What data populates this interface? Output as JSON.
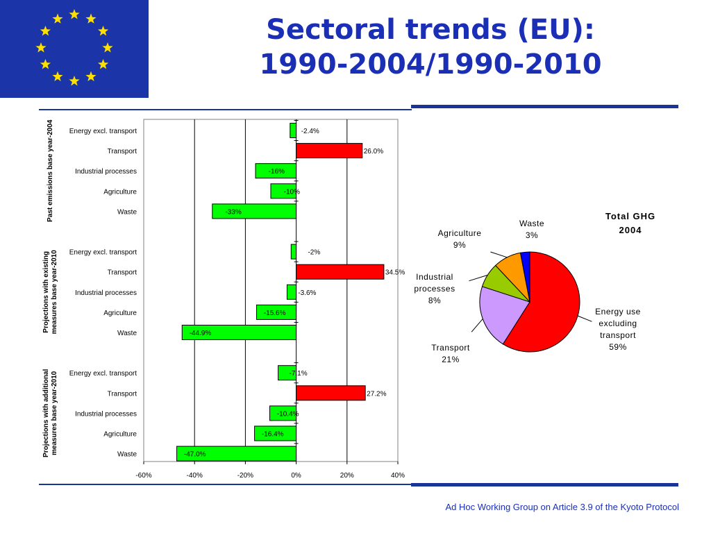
{
  "header": {
    "title_line1": "Sectoral trends (EU):",
    "title_line2": "1990-2004/1990-2010"
  },
  "flag": {
    "icon": "eu-flag-icon",
    "stars": 12,
    "background": "#1b35a8",
    "star_color": "#ffe000"
  },
  "footer": {
    "text": "Ad Hoc Working Group on Article 3.9 of the Kyoto Protocol"
  },
  "colors": {
    "accent": "#1a3399",
    "green": "#00ff00",
    "red": "#ff0000"
  },
  "chart_data": [
    {
      "type": "bar",
      "orientation": "horizontal",
      "xlim": [
        -60,
        40
      ],
      "x_ticks": [
        "-60%",
        "-40%",
        "-20%",
        "0%",
        "20%",
        "40%"
      ],
      "grid": true,
      "groups": [
        {
          "label": "Past emissions base year-2004",
          "categories": [
            "Energy excl. transport",
            "Transport",
            "Industrial processes",
            "Agriculture",
            "Waste"
          ],
          "values": [
            -2.4,
            26.0,
            -16,
            -10,
            -33
          ],
          "data_labels": [
            "-2.4%",
            "26.0%",
            "-16%",
            "-10%",
            "-33%"
          ]
        },
        {
          "label": "Projections with existing measures base year-2010",
          "categories": [
            "Energy excl. transport",
            "Transport",
            "Industrial processes",
            "Agriculture",
            "Waste"
          ],
          "values": [
            -2,
            34.5,
            -3.6,
            -15.6,
            -44.9
          ],
          "data_labels": [
            "-2%",
            "34.5%",
            "-3.6%",
            "-15.6%",
            "-44.9%"
          ]
        },
        {
          "label": "Projections with additional measures base year-2010",
          "categories": [
            "Energy excl. transport",
            "Transport",
            "Industrial processes",
            "Agriculture",
            "Waste"
          ],
          "values": [
            -7.1,
            27.2,
            -10.4,
            -16.4,
            -47.0
          ],
          "data_labels": [
            "-7.1%",
            "27.2%",
            "-10.4%",
            "-16.4%",
            "-47.0%"
          ]
        }
      ]
    },
    {
      "type": "pie",
      "title_line1": "Total GHG",
      "title_line2": "2004",
      "slices": [
        {
          "name": "Energy use excluding transport",
          "label_lines": [
            "Energy use",
            "excluding",
            "transport",
            "59%"
          ],
          "value": 59,
          "color": "#ff0000"
        },
        {
          "name": "Transport",
          "label_lines": [
            "Transport",
            "21%"
          ],
          "value": 21,
          "color": "#cc99ff"
        },
        {
          "name": "Industrial processes",
          "label_lines": [
            "Industrial",
            "processes",
            "8%"
          ],
          "value": 8,
          "color": "#99cc00"
        },
        {
          "name": "Agriculture",
          "label_lines": [
            "Agriculture",
            "9%"
          ],
          "value": 9,
          "color": "#ff9900"
        },
        {
          "name": "Waste",
          "label_lines": [
            "Waste",
            "3%"
          ],
          "value": 3,
          "color": "#0000ff"
        }
      ]
    }
  ]
}
